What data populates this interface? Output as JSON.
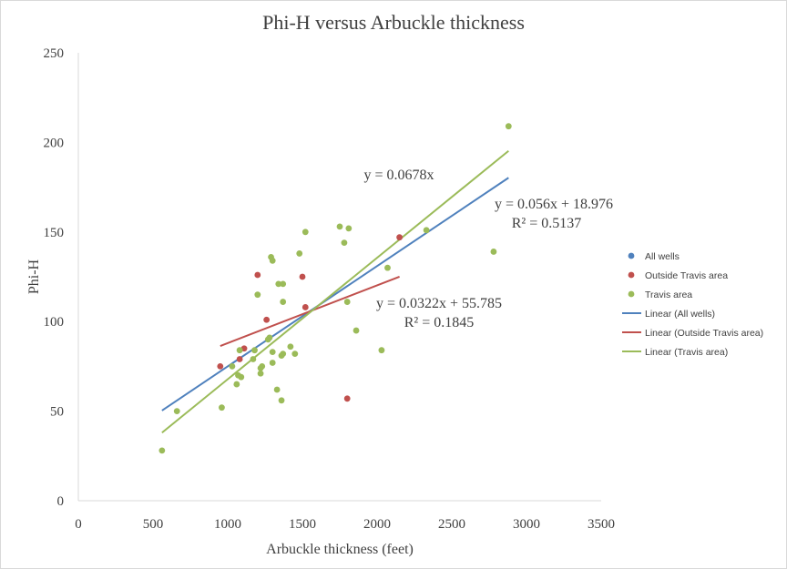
{
  "chart_data": {
    "type": "scatter",
    "title": "Phi-H versus Arbuckle thickness",
    "xlabel": "Arbuckle thickness  (feet)",
    "ylabel": "Phi-H",
    "xlim": [
      0,
      3500
    ],
    "ylim": [
      0,
      250
    ],
    "x_ticks": [
      "0",
      "500",
      "1000",
      "1500",
      "2000",
      "2500",
      "3000",
      "3500"
    ],
    "y_ticks": [
      "0",
      "50",
      "100",
      "150",
      "200",
      "250"
    ],
    "grid": false,
    "legend_position": "right",
    "series": [
      {
        "name": "All wells",
        "color": "#4f81bd",
        "points": []
      },
      {
        "name": "Outside Travis area",
        "color": "#c0504d",
        "points": [
          [
            950,
            75
          ],
          [
            1080,
            79
          ],
          [
            1110,
            85
          ],
          [
            1200,
            126
          ],
          [
            1260,
            101
          ],
          [
            1500,
            125
          ],
          [
            1520,
            108
          ],
          [
            1800,
            57
          ],
          [
            2150,
            147
          ]
        ]
      },
      {
        "name": "Travis area",
        "color": "#9bbb59",
        "points": [
          [
            560,
            28
          ],
          [
            660,
            50
          ],
          [
            960,
            52
          ],
          [
            1030,
            75
          ],
          [
            1060,
            65
          ],
          [
            1070,
            70
          ],
          [
            1080,
            84
          ],
          [
            1090,
            69
          ],
          [
            1170,
            79
          ],
          [
            1180,
            84
          ],
          [
            1200,
            115
          ],
          [
            1220,
            71
          ],
          [
            1220,
            74
          ],
          [
            1230,
            75
          ],
          [
            1270,
            90
          ],
          [
            1280,
            91
          ],
          [
            1290,
            136
          ],
          [
            1300,
            83
          ],
          [
            1300,
            77
          ],
          [
            1300,
            134
          ],
          [
            1330,
            62
          ],
          [
            1340,
            121
          ],
          [
            1360,
            56
          ],
          [
            1360,
            81
          ],
          [
            1370,
            82
          ],
          [
            1370,
            121
          ],
          [
            1370,
            111
          ],
          [
            1420,
            86
          ],
          [
            1450,
            82
          ],
          [
            1480,
            138
          ],
          [
            1520,
            150
          ],
          [
            1750,
            153
          ],
          [
            1780,
            144
          ],
          [
            1800,
            111
          ],
          [
            1810,
            152
          ],
          [
            1860,
            95
          ],
          [
            2030,
            84
          ],
          [
            2070,
            130
          ],
          [
            2330,
            151
          ],
          [
            2780,
            139
          ],
          [
            2880,
            209
          ]
        ]
      }
    ],
    "trendlines": [
      {
        "name": "Linear (All wells)",
        "color": "#4f81bd",
        "slope": 0.056,
        "intercept": 18.976,
        "x_range": [
          560,
          2880
        ],
        "equation": "y = 0.056x + 18.976",
        "r2": "R² = 0.5137"
      },
      {
        "name": "Linear (Outside Travis area)",
        "color": "#c0504d",
        "slope": 0.0322,
        "intercept": 55.785,
        "x_range": [
          950,
          2150
        ],
        "equation": "y = 0.0322x + 55.785",
        "r2": "R² = 0.1845"
      },
      {
        "name": "Linear (Travis area)",
        "color": "#9bbb59",
        "slope": 0.0678,
        "intercept": 0,
        "x_range": [
          560,
          2880
        ],
        "equation": "y = 0.0678x",
        "r2": ""
      }
    ],
    "legend": [
      {
        "label": "All wells",
        "kind": "marker",
        "color": "#4f81bd"
      },
      {
        "label": "Outside Travis area",
        "kind": "marker",
        "color": "#c0504d"
      },
      {
        "label": "Travis area",
        "kind": "marker",
        "color": "#9bbb59"
      },
      {
        "label": "Linear (All wells)",
        "kind": "line",
        "color": "#4f81bd"
      },
      {
        "label": "Linear (Outside Travis area)",
        "kind": "line",
        "color": "#c0504d"
      },
      {
        "label": "Linear (Travis area)",
        "kind": "line",
        "color": "#9bbb59"
      }
    ]
  }
}
